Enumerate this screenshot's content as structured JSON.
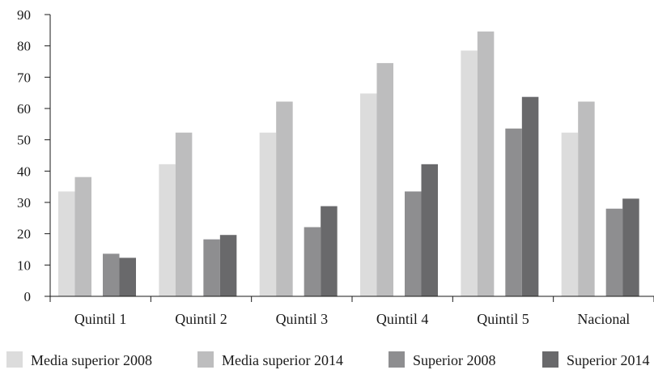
{
  "chart_data": {
    "type": "bar",
    "title": "",
    "xlabel": "",
    "ylabel": "",
    "ylim": [
      0,
      90
    ],
    "yticks": [
      0,
      10,
      20,
      30,
      40,
      50,
      60,
      70,
      80,
      90
    ],
    "grid": false,
    "legend_position": "bottom",
    "categories": [
      "Quintil 1",
      "Quintil 2",
      "Quintil 3",
      "Quintil 4",
      "Quintil 5",
      "Nacional"
    ],
    "series": [
      {
        "name": "Media superior 2008",
        "color": "#dcdcdc",
        "values": [
          33.5,
          42.2,
          52.3,
          64.8,
          78.5,
          52.3
        ]
      },
      {
        "name": "Media superior 2014",
        "color": "#bdbdbe",
        "values": [
          38.1,
          52.3,
          62.2,
          74.5,
          84.6,
          62.2
        ]
      },
      {
        "name": "Superior 2008",
        "color": "#8e8e90",
        "values": [
          13.6,
          18.2,
          22.1,
          33.5,
          53.6,
          28.0
        ]
      },
      {
        "name": "Superior 2014",
        "color": "#69696b",
        "values": [
          12.3,
          19.6,
          28.8,
          42.2,
          63.7,
          31.2
        ]
      }
    ]
  }
}
